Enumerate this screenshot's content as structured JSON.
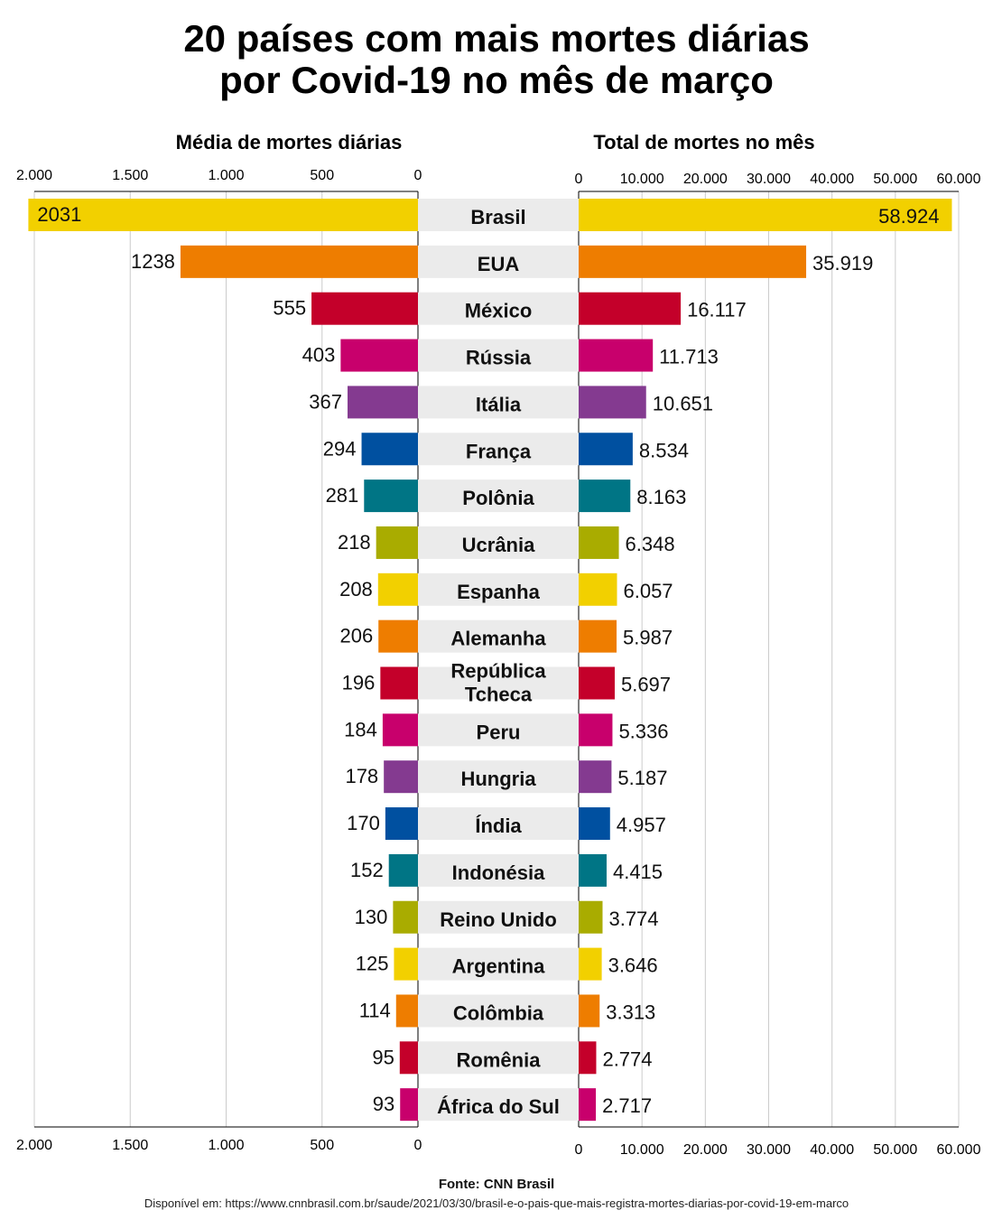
{
  "chart_data": {
    "type": "bar",
    "title_lines": [
      "20 países com mais mortes diárias",
      "por Covid-19 no mês de março"
    ],
    "left_panel": {
      "label": "Média de mortes diárias",
      "ticks": [
        "2.000",
        "1.500",
        "1.000",
        "500",
        "0"
      ],
      "tick_values": [
        2000,
        1500,
        1000,
        500,
        0
      ],
      "xlim": [
        0,
        2000
      ],
      "values": [
        2031,
        1238,
        555,
        403,
        367,
        294,
        281,
        218,
        208,
        206,
        196,
        184,
        178,
        170,
        152,
        130,
        125,
        114,
        95,
        93
      ],
      "labels": [
        "2031",
        "1238",
        "555",
        "403",
        "367",
        "294",
        "281",
        "218",
        "208",
        "206",
        "196",
        "184",
        "178",
        "170",
        "152",
        "130",
        "125",
        "114",
        "95",
        "93"
      ]
    },
    "right_panel": {
      "label": "Total de mortes no mês",
      "ticks": [
        "0",
        "10.000",
        "20.000",
        "30.000",
        "40.000",
        "50.000",
        "60.000"
      ],
      "tick_values": [
        0,
        10000,
        20000,
        30000,
        40000,
        50000,
        60000
      ],
      "xlim": [
        0,
        60000
      ],
      "values": [
        58924,
        35919,
        16117,
        11713,
        10651,
        8534,
        8163,
        6348,
        6057,
        5987,
        5697,
        5336,
        5187,
        4957,
        4415,
        3774,
        3646,
        3313,
        2774,
        2717
      ],
      "labels": [
        "58.924",
        "35.919",
        "16.117",
        "11.713",
        "10.651",
        "8.534",
        "8.163",
        "6.348",
        "6.057",
        "5.987",
        "5.697",
        "5.336",
        "5.187",
        "4.957",
        "4.415",
        "3.774",
        "3.646",
        "3.313",
        "2.774",
        "2.717"
      ]
    },
    "categories": [
      "Brasil",
      "EUA",
      "México",
      "Rússia",
      "Itália",
      "França",
      "Polônia",
      "Ucrânia",
      "Espanha",
      "Alemanha",
      "República Tcheca",
      "Peru",
      "Hungria",
      "Índia",
      "Indonésia",
      "Reino Unido",
      "Argentina",
      "Colômbia",
      "Romênia",
      "África do Sul"
    ],
    "colors": [
      "#f2d000",
      "#ee7d00",
      "#c4002a",
      "#c8006c",
      "#843a90",
      "#0050a0",
      "#007585",
      "#a9ac00"
    ],
    "source": "Fonte: CNN Brasil",
    "note": "Disponível em: https://www.cnnbrasil.com.br/saude/2021/03/30/brasil-e-o-pais-que-mais-registra-mortes-diarias-por-covid-19-em-marco"
  }
}
